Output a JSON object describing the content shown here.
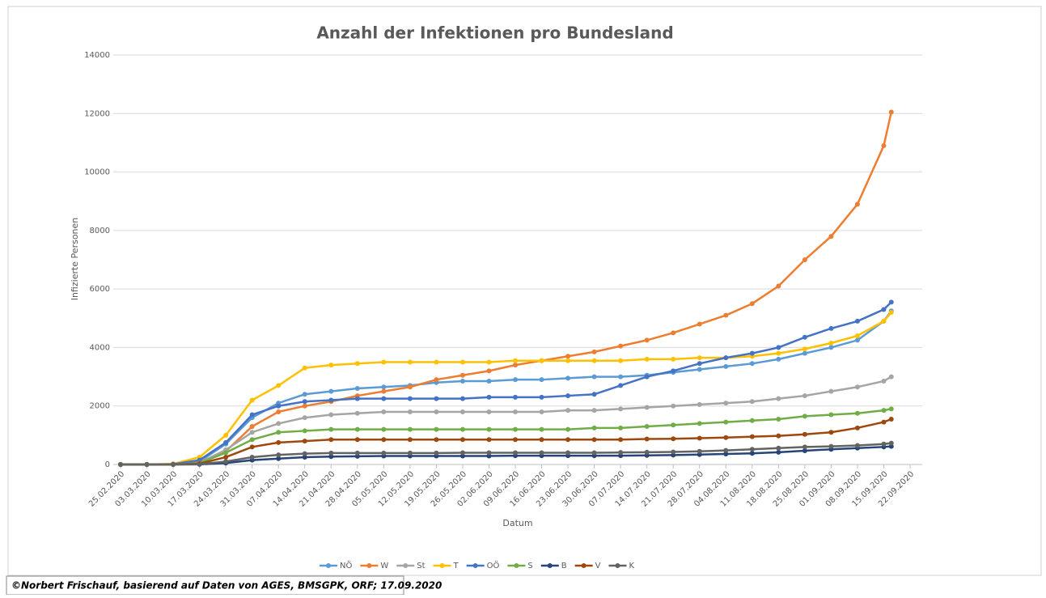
{
  "chart_data": {
    "type": "line",
    "title": "Anzahl der Infektionen pro Bundesland",
    "xlabel": "Datum",
    "ylabel": "Infizierte Personen",
    "footer": "©Norbert Frischauf,  basierend auf Daten von AGES, BMSGPK, ORF; 17.09.2020",
    "x": [
      "25.02.2020",
      "03.03.2020",
      "10.03.2020",
      "17.03.2020",
      "24.03.2020",
      "31.03.2020",
      "07.04.2020",
      "14.04.2020",
      "21.04.2020",
      "28.04.2020",
      "05.05.2020",
      "12.05.2020",
      "19.05.2020",
      "26.05.2020",
      "02.06.2020",
      "09.06.2020",
      "16.06.2020",
      "23.06.2020",
      "30.06.2020",
      "07.07.2020",
      "14.07.2020",
      "21.07.2020",
      "28.07.2020",
      "04.08.2020",
      "11.08.2020",
      "18.08.2020",
      "25.08.2020",
      "01.09.2020",
      "08.09.2020",
      "15.09.2020",
      "17.09.2020"
    ],
    "xlim": [
      "25.02.2020",
      "22.09.2020"
    ],
    "xticks": [
      "25.02.2020",
      "03.03.2020",
      "10.03.2020",
      "17.03.2020",
      "24.03.2020",
      "31.03.2020",
      "07.04.2020",
      "14.04.2020",
      "21.04.2020",
      "28.04.2020",
      "05.05.2020",
      "12.05.2020",
      "19.05.2020",
      "26.05.2020",
      "02.06.2020",
      "09.06.2020",
      "16.06.2020",
      "23.06.2020",
      "30.06.2020",
      "07.07.2020",
      "14.07.2020",
      "21.07.2020",
      "28.07.2020",
      "04.08.2020",
      "11.08.2020",
      "18.08.2020",
      "25.08.2020",
      "01.09.2020",
      "08.09.2020",
      "15.09.2020",
      "22.09.2020"
    ],
    "ylim": [
      0,
      14000
    ],
    "yticks": [
      0,
      2000,
      4000,
      6000,
      8000,
      10000,
      12000,
      14000
    ],
    "grid": true,
    "legend": "bottom",
    "series": [
      {
        "name": "NÖ",
        "color": "#5b9bd5",
        "values": [
          0,
          0,
          10,
          100,
          700,
          1600,
          2100,
          2400,
          2500,
          2600,
          2650,
          2700,
          2800,
          2850,
          2850,
          2900,
          2900,
          2950,
          3000,
          3000,
          3050,
          3150,
          3250,
          3350,
          3450,
          3600,
          3800,
          4000,
          4250,
          4900,
          5250
        ]
      },
      {
        "name": "W",
        "color": "#ed7d31",
        "values": [
          0,
          0,
          5,
          80,
          450,
          1300,
          1800,
          2000,
          2150,
          2350,
          2500,
          2650,
          2900,
          3050,
          3200,
          3400,
          3550,
          3700,
          3850,
          4050,
          4250,
          4500,
          4800,
          5100,
          5500,
          6100,
          7000,
          7800,
          8900,
          10900,
          12050
        ]
      },
      {
        "name": "St",
        "color": "#a5a5a5",
        "values": [
          0,
          0,
          5,
          60,
          500,
          1100,
          1400,
          1600,
          1700,
          1750,
          1800,
          1800,
          1800,
          1800,
          1800,
          1800,
          1800,
          1850,
          1850,
          1900,
          1950,
          2000,
          2050,
          2100,
          2150,
          2250,
          2350,
          2500,
          2650,
          2850,
          3000
        ]
      },
      {
        "name": "T",
        "color": "#ffc000",
        "values": [
          0,
          0,
          20,
          250,
          1000,
          2200,
          2700,
          3300,
          3400,
          3450,
          3500,
          3500,
          3500,
          3500,
          3500,
          3550,
          3550,
          3550,
          3550,
          3550,
          3600,
          3600,
          3650,
          3650,
          3700,
          3800,
          3950,
          4150,
          4400,
          4900,
          5200
        ]
      },
      {
        "name": "OÖ",
        "color": "#4472c4",
        "values": [
          0,
          0,
          10,
          150,
          750,
          1700,
          2000,
          2150,
          2200,
          2250,
          2250,
          2250,
          2250,
          2250,
          2300,
          2300,
          2300,
          2350,
          2400,
          2700,
          3000,
          3200,
          3450,
          3650,
          3800,
          4000,
          4350,
          4650,
          4900,
          5300,
          5550
        ]
      },
      {
        "name": "S",
        "color": "#70ad47",
        "values": [
          0,
          0,
          5,
          50,
          400,
          850,
          1100,
          1150,
          1200,
          1200,
          1200,
          1200,
          1200,
          1200,
          1200,
          1200,
          1200,
          1200,
          1250,
          1250,
          1300,
          1350,
          1400,
          1450,
          1500,
          1550,
          1650,
          1700,
          1750,
          1850,
          1900
        ]
      },
      {
        "name": "B",
        "color": "#264478",
        "values": [
          0,
          0,
          0,
          5,
          50,
          150,
          200,
          250,
          270,
          280,
          290,
          290,
          290,
          290,
          290,
          300,
          300,
          300,
          300,
          300,
          310,
          320,
          340,
          360,
          380,
          420,
          470,
          520,
          560,
          600,
          620
        ]
      },
      {
        "name": "V",
        "color": "#9e480e",
        "values": [
          0,
          0,
          5,
          30,
          250,
          600,
          750,
          800,
          850,
          850,
          850,
          850,
          850,
          850,
          850,
          850,
          850,
          850,
          850,
          850,
          870,
          880,
          900,
          920,
          950,
          980,
          1030,
          1100,
          1250,
          1450,
          1550
        ]
      },
      {
        "name": "K",
        "color": "#636363",
        "values": [
          0,
          0,
          0,
          10,
          100,
          250,
          330,
          370,
          390,
          390,
          390,
          390,
          390,
          400,
          400,
          400,
          400,
          400,
          400,
          410,
          420,
          430,
          450,
          480,
          520,
          560,
          600,
          620,
          650,
          700,
          730
        ]
      }
    ]
  }
}
